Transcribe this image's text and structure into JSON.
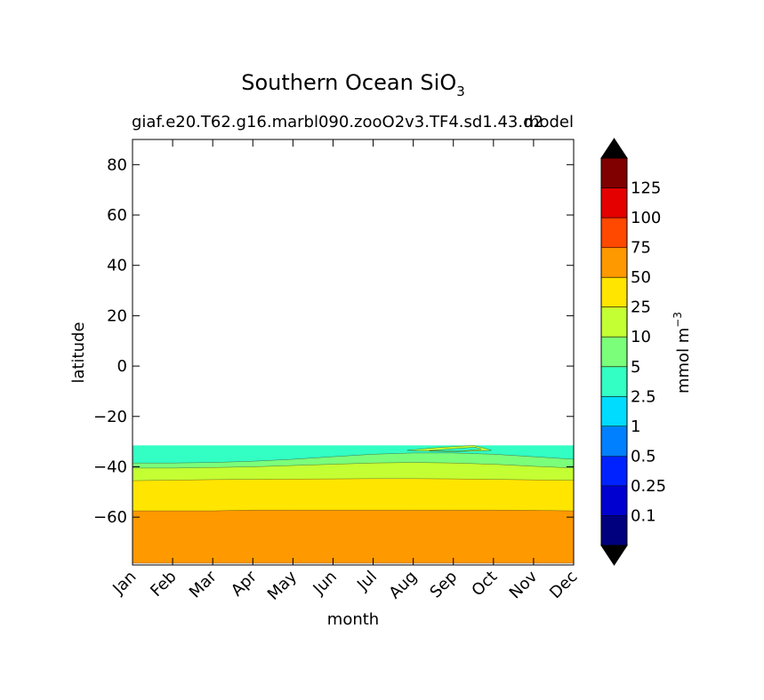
{
  "chart_data": {
    "type": "contourf",
    "title": "Southern Ocean SiO",
    "title_subscript": "3",
    "subtitle_left": "giaf.e20.T62.g16.marbl090.zooO2v3.TF4.sd1.43.d2",
    "subtitle_right": "model",
    "xlabel": "month",
    "ylabel": "latitude",
    "x_categories": [
      "Jan",
      "Feb",
      "Mar",
      "Apr",
      "May",
      "Jun",
      "Jul",
      "Aug",
      "Sep",
      "Oct",
      "Nov",
      "Dec"
    ],
    "ylim": [
      -79,
      90
    ],
    "y_ticks": [
      -60,
      -40,
      -20,
      0,
      20,
      40,
      60,
      80
    ],
    "y_tick_labels": [
      "−60",
      "−40",
      "−20",
      "0",
      "20",
      "40",
      "60",
      "80"
    ],
    "data_top_lat": -31.5,
    "regions": [
      {
        "name": "band-2.5-5",
        "color": "#33ffc4",
        "upper": [
          -31.5,
          -31.5,
          -31.5,
          -31.5,
          -31.5,
          -31.5,
          -31.5,
          -31.5,
          -31.5,
          -31.5,
          -31.5,
          -31.5
        ],
        "lower": [
          -38.5,
          -38.5,
          -38.3,
          -37.8,
          -37.0,
          -36.0,
          -35.0,
          -34.5,
          -34.5,
          -35.0,
          -36.0,
          -37.0
        ]
      },
      {
        "name": "band-5-10",
        "color": "#7bff7b",
        "upper": [
          -38.5,
          -38.5,
          -38.3,
          -37.8,
          -37.0,
          -36.0,
          -35.0,
          -34.5,
          -34.5,
          -35.0,
          -36.0,
          -37.0
        ],
        "lower": [
          -40.5,
          -40.5,
          -40.3,
          -40.0,
          -39.5,
          -39.0,
          -38.5,
          -38.3,
          -38.5,
          -39.0,
          -39.8,
          -40.5
        ]
      },
      {
        "name": "band-10-25",
        "color": "#c4ff33",
        "upper": [
          -40.5,
          -40.5,
          -40.3,
          -40.0,
          -39.5,
          -39.0,
          -38.5,
          -38.3,
          -38.5,
          -39.0,
          -39.8,
          -40.5
        ],
        "lower": [
          -45.5,
          -45.3,
          -45.1,
          -45.0,
          -44.9,
          -44.8,
          -44.7,
          -44.7,
          -44.8,
          -45.0,
          -45.2,
          -45.4
        ]
      },
      {
        "name": "band-25-50",
        "color": "#ffe500",
        "upper": [
          -45.5,
          -45.3,
          -45.1,
          -45.0,
          -44.9,
          -44.8,
          -44.7,
          -44.7,
          -44.8,
          -45.0,
          -45.2,
          -45.4
        ],
        "lower": [
          -57.5,
          -57.5,
          -57.5,
          -57.2,
          -57.2,
          -57.2,
          -57.2,
          -57.2,
          -57.2,
          -57.2,
          -57.3,
          -57.5
        ]
      },
      {
        "name": "band-50-75",
        "color": "#ff9900",
        "upper": [
          -57.5,
          -57.5,
          -57.5,
          -57.2,
          -57.2,
          -57.2,
          -57.2,
          -57.2,
          -57.2,
          -57.2,
          -57.3,
          -57.5
        ],
        "lower": [
          -78.3,
          -78.3,
          -78.3,
          -78.3,
          -78.3,
          -78.3,
          -78.3,
          -78.3,
          -78.3,
          -78.3,
          -78.3,
          -78.3
        ]
      }
    ],
    "local_features": [
      {
        "name": "patch-10-25-sep",
        "color": "#c4ff33",
        "points": [
          [
            6.85,
            -33.5
          ],
          [
            7.6,
            -32.4
          ],
          [
            8.5,
            -31.5
          ],
          [
            8.75,
            -32.5
          ],
          [
            8.95,
            -33.5
          ],
          [
            8.0,
            -34.0
          ]
        ]
      },
      {
        "name": "contour-inner-sep",
        "color": "#33ffc4",
        "points": [
          [
            7.4,
            -33.6
          ],
          [
            8.0,
            -32.8
          ],
          [
            8.55,
            -32.2
          ],
          [
            8.7,
            -33.1
          ],
          [
            8.1,
            -33.8
          ]
        ]
      }
    ],
    "colorbar": {
      "label": "mmol m",
      "label_superscript": "−3",
      "extend": "both",
      "under_color": "#000000",
      "over_color": "#000000",
      "segments": [
        "#00007f",
        "#0000d0",
        "#0022ff",
        "#0080ff",
        "#00dcfe",
        "#33ffc4",
        "#7bff7b",
        "#c4ff33",
        "#ffe500",
        "#ff9900",
        "#ff4800",
        "#e50000",
        "#800000"
      ],
      "tick_labels": [
        "0.1",
        "0.25",
        "0.5",
        "1",
        "2.5",
        "5",
        "10",
        "25",
        "50",
        "75",
        "100",
        "125"
      ]
    }
  }
}
